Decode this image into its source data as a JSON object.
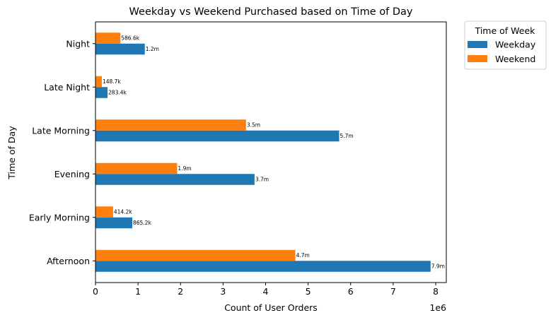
{
  "chart_data": {
    "type": "bar",
    "orientation": "horizontal",
    "title": "Weekday vs Weekend Purchased based on Time of Day",
    "xlabel": "Count of User Orders",
    "ylabel": "Time of Day",
    "x_offset_text": "1e6",
    "xlim": [
      0,
      8250000
    ],
    "xticks": [
      0,
      1000000,
      2000000,
      3000000,
      4000000,
      5000000,
      6000000,
      7000000,
      8000000
    ],
    "xtick_labels": [
      "0",
      "1",
      "2",
      "3",
      "4",
      "5",
      "6",
      "7",
      "8"
    ],
    "categories": [
      "Afternoon",
      "Early Morning",
      "Evening",
      "Late Morning",
      "Late Night",
      "Night"
    ],
    "series": [
      {
        "name": "Weekday",
        "color": "#1f77b4",
        "values": [
          7880000,
          865200,
          3740000,
          5730000,
          283400,
          1160000
        ],
        "labels": [
          "7.9m",
          "865.2k",
          "3.7m",
          "5.7m",
          "283.4k",
          "1.2m"
        ]
      },
      {
        "name": "Weekend",
        "color": "#ff7f0e",
        "values": [
          4700000,
          414200,
          1920000,
          3540000,
          148700,
          586600
        ],
        "labels": [
          "4.7m",
          "414.2k",
          "1.9m",
          "3.5m",
          "148.7k",
          "586.6k"
        ]
      }
    ],
    "legend": {
      "title": "Time of Week",
      "placement": "outside-top-right"
    },
    "grid": false
  }
}
